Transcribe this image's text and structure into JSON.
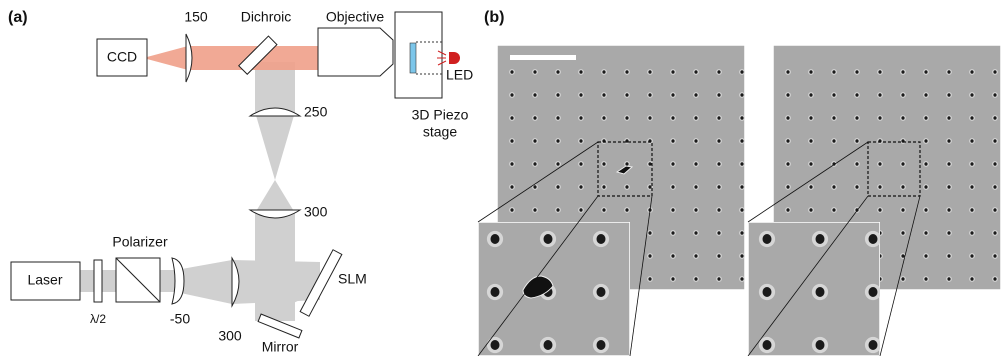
{
  "panel_a": {
    "label": "(a)",
    "ccd": "CCD",
    "lens_ccd": "150",
    "dichroic": "Dichroic",
    "objective": "Objective",
    "led": "LED",
    "stage_line1": "3D Piezo",
    "stage_line2": "stage",
    "lens_upper": "250",
    "lens_lower": "300",
    "laser": "Laser",
    "waveplate": "λ/2",
    "polarizer": "Polarizer",
    "lens_neg": "-50",
    "lens_laser": "300",
    "slm": "SLM",
    "mirror": "Mirror"
  },
  "panel_b": {
    "label": "(b)"
  }
}
